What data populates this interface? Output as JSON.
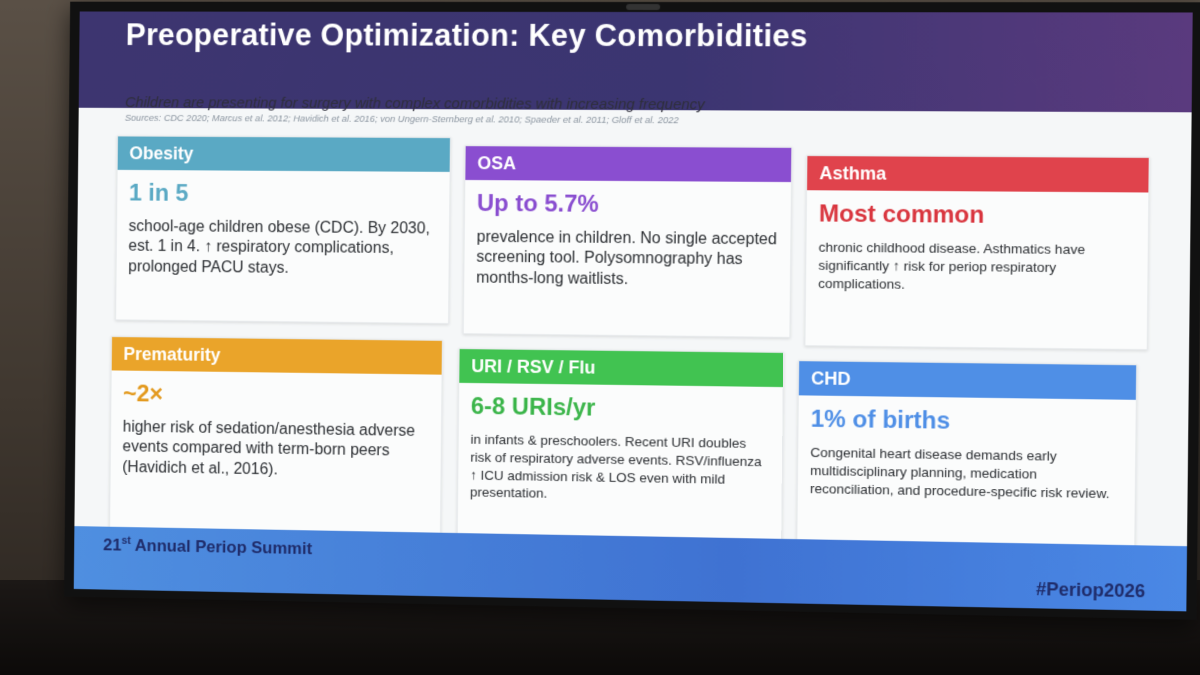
{
  "slide": {
    "title": "Preoperative Optimization: Key Comorbidities",
    "subtitle": "Children are presenting for surgery with complex comorbidities with increasing frequency",
    "sources": "Sources: CDC 2020; Marcus et al. 2012; Havidich et al. 2016; von Ungern-Sternberg et al. 2010; Spaeder et al. 2011; Gloff et al. 2022"
  },
  "cards": [
    {
      "header": "Obesity",
      "stat": "1 in 5",
      "text": "school-age children obese (CDC). By 2030, est. 1 in 4. ↑ respiratory complications, prolonged PACU stays.",
      "color": "#5aa9c4",
      "stat_color": "#5aa9c4"
    },
    {
      "header": "OSA",
      "stat": "Up to 5.7%",
      "text": "prevalence in children. No single accepted screening tool. Polysomnography has months-long waitlists.",
      "color": "#8a4ed0",
      "stat_color": "#8a4ed0"
    },
    {
      "header": "Asthma",
      "stat": "Most common",
      "text": "chronic childhood disease. Asthmatics have significantly ↑ risk for periop respiratory complications.",
      "color": "#e0434c",
      "stat_color": "#d9363f"
    },
    {
      "header": "Prematurity",
      "stat": "~2×",
      "text": "higher risk of sedation/anesthesia adverse events compared with term-born peers (Havidich et al., 2016).",
      "color": "#eaa42a",
      "stat_color": "#e39a1f"
    },
    {
      "header": "URI / RSV / Flu",
      "stat": "6-8 URIs/yr",
      "text": "in infants & preschoolers. Recent URI doubles risk of respiratory adverse events. RSV/influenza ↑ ICU admission risk & LOS even with mild presentation.",
      "color": "#41c351",
      "stat_color": "#3bb54a"
    },
    {
      "header": "CHD",
      "stat": "1% of births",
      "text": "Congenital heart disease demands early multidisciplinary planning, medication reconciliation, and procedure-specific risk review.",
      "color": "#4f8fe6",
      "stat_color": "#4f8fe6"
    }
  ],
  "footer": {
    "ordinal_number": "21",
    "ordinal_suffix": "st",
    "event_name": "Annual Periop Summit",
    "hashtag": "#Periop2026"
  }
}
